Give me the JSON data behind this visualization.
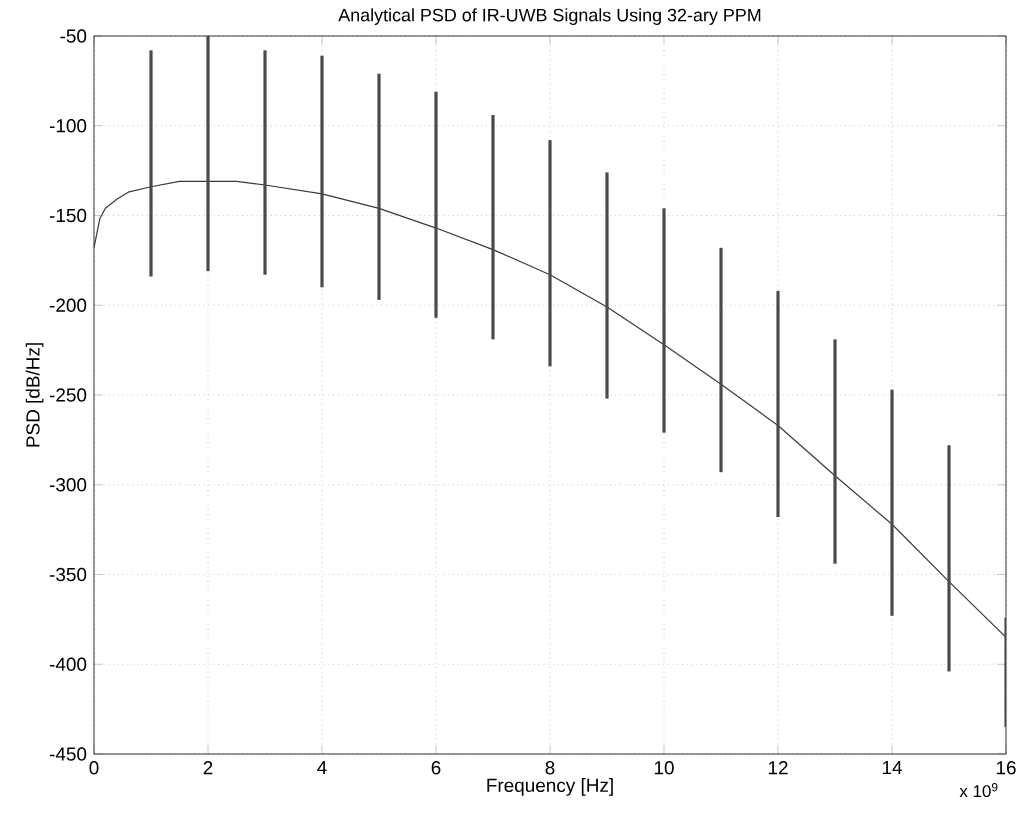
{
  "chart_data": {
    "type": "line",
    "title": "Analytical PSD of IR-UWB Signals Using 32-ary PPM",
    "xlabel": "Frequency [Hz]",
    "ylabel": "PSD [dB/Hz]",
    "annotations": [
      "x 10$^{9}$"
    ],
    "series": [
      {
        "color": "#3a3a3a",
        "x": [
          0,
          0.05,
          0.1,
          0.2,
          0.4,
          0.6,
          1,
          1.5,
          2,
          2.5,
          3,
          4,
          5,
          6,
          7,
          8,
          9,
          10,
          11,
          12,
          13,
          14,
          15,
          16
        ],
        "values": [
          -168,
          -160,
          -152,
          -146,
          -141,
          -137,
          -134,
          -131,
          -131,
          -131,
          -133,
          -138,
          -146,
          -157,
          -169,
          -183,
          -201,
          -222,
          -244,
          -267,
          -295,
          -322,
          -354,
          -385
        ]
      },
      {
        "type": "bar",
        "color": "#4a4a4a",
        "x": [
          1,
          2,
          3,
          4,
          5,
          6,
          7,
          8,
          9,
          10,
          11,
          12,
          13,
          14,
          15,
          16
        ],
        "base": [
          -184,
          -181,
          -183,
          -190,
          -197,
          -207,
          -219,
          -234,
          -252,
          -271,
          -293,
          -318,
          -344,
          -373,
          -404,
          -435
        ],
        "values": [
          126,
          131,
          125,
          129,
          126,
          126,
          125,
          126,
          126,
          125,
          125,
          126,
          125,
          126,
          126,
          61
        ]
      }
    ],
    "xlim": [
      0,
      16
    ],
    "xticks": [
      0,
      2,
      4,
      6,
      8,
      10,
      12,
      14,
      16
    ],
    "ylim": [
      -450,
      -50
    ],
    "yticks": [
      -450,
      -400,
      -350,
      -300,
      -250,
      -200,
      -150,
      -100,
      -50
    ],
    "grid": true,
    "line_style": "solid",
    "marker": "none"
  }
}
